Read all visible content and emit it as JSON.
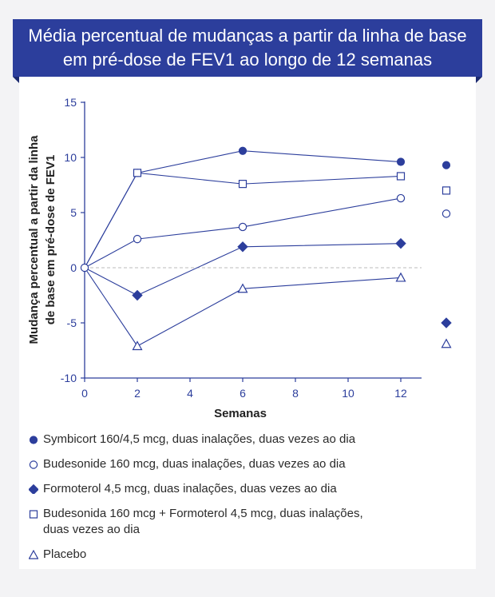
{
  "title": "Média percentual de mudanças a partir da linha de base em pré-dose de FEV1 ao longo de 12 semanas",
  "colors": {
    "primary": "#2c3e9c",
    "axis": "#2c3e9c",
    "zero_line": "#bbbbbb",
    "text": "#2a2a2a"
  },
  "chart_data": {
    "type": "line",
    "title": "Média percentual de mudanças a partir da linha de base em pré-dose de FEV1 ao longo de 12 semanas",
    "xlabel": "Semanas",
    "ylabel": "Mudança percentual a partir da linha de base em pré-dose de FEV1",
    "ylabel_lines": [
      "Mudança percentual a partir da linha",
      "de base em pré-dose de FEV1"
    ],
    "xlim": [
      0,
      13
    ],
    "ylim": [
      -10,
      15
    ],
    "x_ticks": [
      0,
      2,
      4,
      6,
      8,
      10,
      12
    ],
    "y_ticks": [
      -10,
      -5,
      0,
      5,
      10,
      15
    ],
    "x_tick_labels": [
      "0",
      "2",
      "4",
      "6",
      "8",
      "10",
      "12"
    ],
    "y_tick_labels": [
      "-10",
      "-5",
      "0",
      "5",
      "10",
      "15"
    ],
    "zero_line": "dashed",
    "x": [
      0,
      2,
      6,
      12
    ],
    "series": [
      {
        "name": "Symbicort 160/4,5 mcg, duas inalações, duas vezes ao dia",
        "marker": "filled-circle",
        "values": [
          0,
          8.6,
          10.6,
          9.6
        ]
      },
      {
        "name": "Budesonide 160 mcg, duas inalações, duas vezes ao dia",
        "marker": "open-circle",
        "values": [
          0,
          2.6,
          3.7,
          6.3
        ]
      },
      {
        "name": "Formoterol 4,5 mcg, duas inalações, duas vezes ao dia",
        "marker": "filled-diamond",
        "values": [
          0,
          -2.5,
          1.9,
          2.2
        ]
      },
      {
        "name": "Budesonida 160 mcg + Formoterol 4,5 mcg, duas inalações, duas vezes ao dia",
        "marker": "open-square",
        "values": [
          0,
          8.6,
          7.6,
          8.3
        ]
      },
      {
        "name": "Placebo",
        "marker": "open-triangle",
        "values": [
          0,
          -7.1,
          -1.9,
          -0.9
        ]
      }
    ],
    "side_marker_order": [
      "filled-circle",
      "open-square",
      "open-circle",
      "filled-diamond",
      "open-triangle"
    ],
    "side_marker_values": [
      9.3,
      7.0,
      4.9,
      -5.0,
      -6.9
    ]
  },
  "legend": [
    {
      "marker": "filled-circle",
      "label_lines": [
        "Symbicort 160/4,5 mcg, duas inalações, duas vezes ao dia"
      ]
    },
    {
      "marker": "open-circle",
      "label_lines": [
        "Budesonide 160 mcg, duas inalações, duas vezes ao dia"
      ]
    },
    {
      "marker": "filled-diamond",
      "label_lines": [
        "Formoterol 4,5 mcg, duas inalações, duas vezes ao dia"
      ]
    },
    {
      "marker": "open-square",
      "label_lines": [
        "Budesonida 160 mcg + Formoterol 4,5 mcg, duas inalações,",
        "duas vezes ao dia"
      ]
    },
    {
      "marker": "open-triangle",
      "label_lines": [
        "Placebo"
      ]
    }
  ]
}
